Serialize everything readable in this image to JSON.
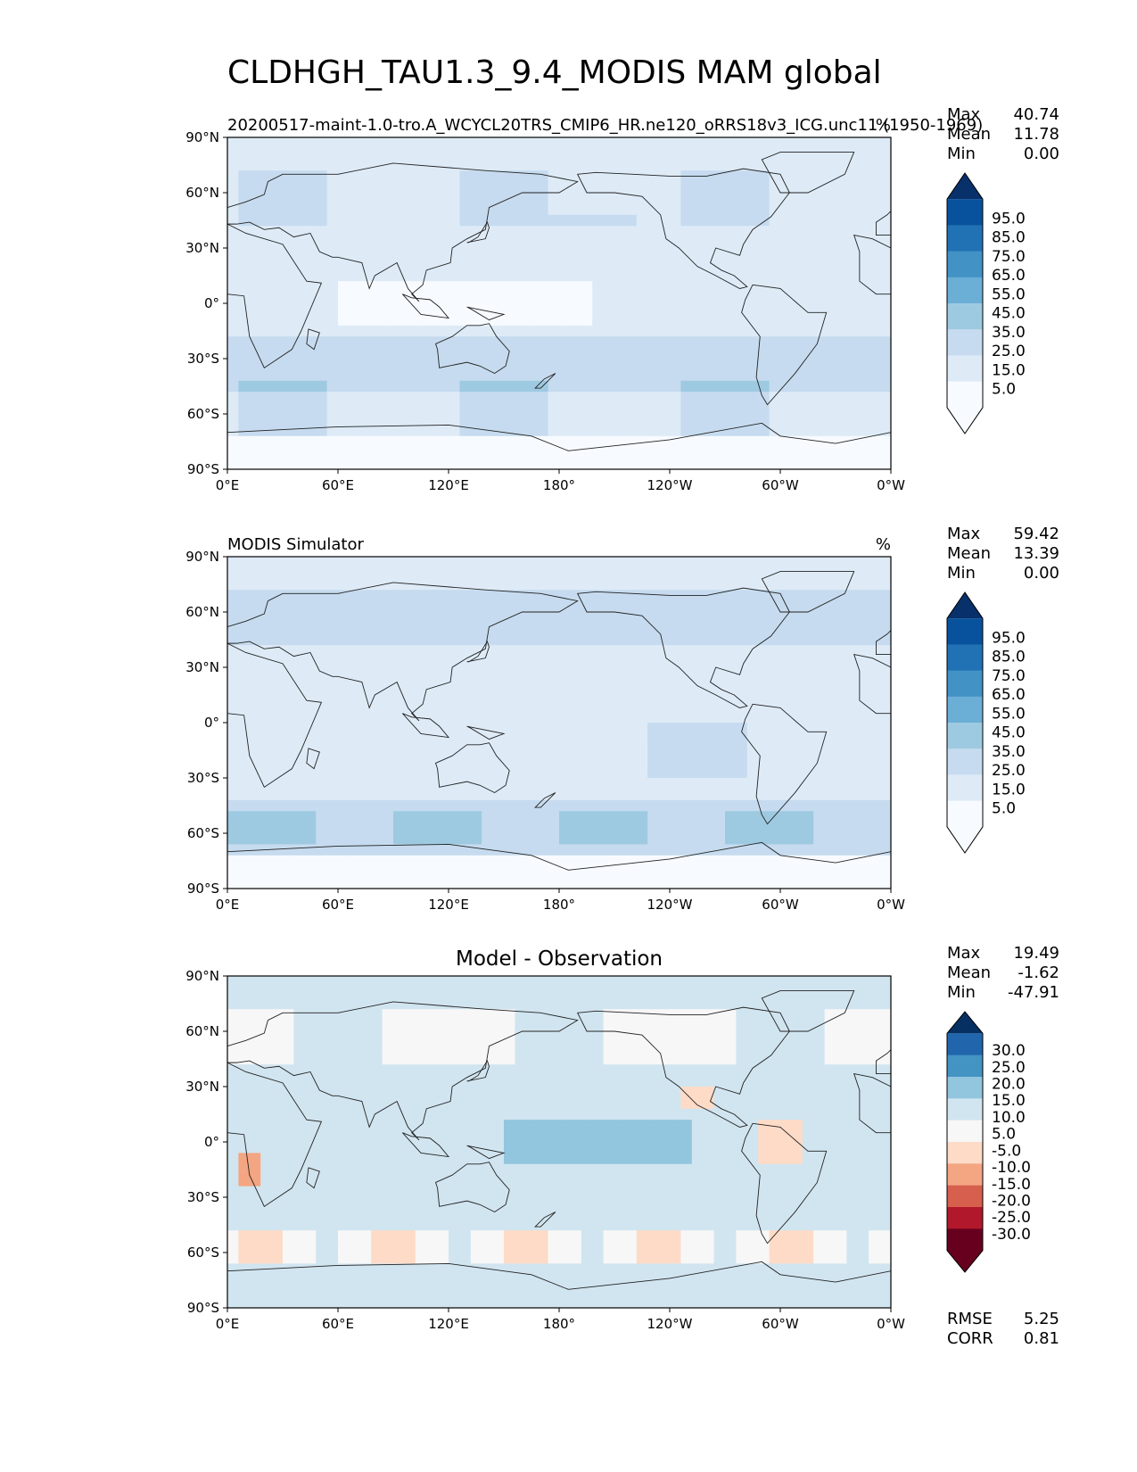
{
  "title": "CLDHGH_TAU1.3_9.4_MODIS MAM global",
  "colors": {
    "seq": [
      "#f7fbff",
      "#deebf7",
      "#c6dbef",
      "#9ecae1",
      "#6baed6",
      "#4292c6",
      "#2171b5",
      "#08519c",
      "#08306b"
    ],
    "div": [
      "#67001f",
      "#b2182b",
      "#d6604d",
      "#f4a582",
      "#fddbc7",
      "#f7f7f7",
      "#d1e5f0",
      "#92c5de",
      "#4393c3",
      "#2166ac",
      "#053061"
    ],
    "coast": "#222222"
  },
  "axes": {
    "lat_ticks": [
      "90°N",
      "60°N",
      "30°N",
      "0°",
      "30°S",
      "60°S",
      "90°S"
    ],
    "lon_ticks": [
      "0°E",
      "60°E",
      "120°E",
      "180°",
      "120°W",
      "60°W",
      "0°W"
    ]
  },
  "panels": [
    {
      "left_title": "20200517-maint-1.0-tro.A_WCYCL20TRS_CMIP6_HR.ne120_oRRS18v3_ICG.unc11 (1950-1969)",
      "center_title": "",
      "units": "%",
      "stats": [
        {
          "label": "Max",
          "value": "40.74"
        },
        {
          "label": "Mean",
          "value": "11.78"
        },
        {
          "label": "Min",
          "value": "0.00"
        }
      ],
      "colorbar": {
        "palette": "seq",
        "labels": [
          "95.0",
          "85.0",
          "75.0",
          "65.0",
          "55.0",
          "45.0",
          "35.0",
          "25.0",
          "15.0",
          "5.0"
        ]
      },
      "field_type": "model"
    },
    {
      "left_title": "MODIS Simulator",
      "center_title": "",
      "units": "%",
      "stats": [
        {
          "label": "Max",
          "value": "59.42"
        },
        {
          "label": "Mean",
          "value": "13.39"
        },
        {
          "label": "Min",
          "value": "0.00"
        }
      ],
      "colorbar": {
        "palette": "seq",
        "labels": [
          "95.0",
          "85.0",
          "75.0",
          "65.0",
          "55.0",
          "45.0",
          "35.0",
          "25.0",
          "15.0",
          "5.0"
        ]
      },
      "field_type": "obs"
    },
    {
      "left_title": "",
      "center_title": "Model - Observation",
      "units": "",
      "stats": [
        {
          "label": "Max",
          "value": "19.49"
        },
        {
          "label": "Mean",
          "value": "-1.62"
        },
        {
          "label": "Min",
          "value": "-47.91"
        }
      ],
      "colorbar": {
        "palette": "div",
        "labels": [
          "30.0",
          "25.0",
          "20.0",
          "15.0",
          "10.0",
          "5.0",
          "-5.0",
          "-10.0",
          "-15.0",
          "-20.0",
          "-25.0",
          "-30.0"
        ]
      },
      "bottom_stats": [
        {
          "label": "RMSE",
          "value": "5.25"
        },
        {
          "label": "CORR",
          "value": "0.81"
        }
      ],
      "field_type": "diff"
    }
  ]
}
